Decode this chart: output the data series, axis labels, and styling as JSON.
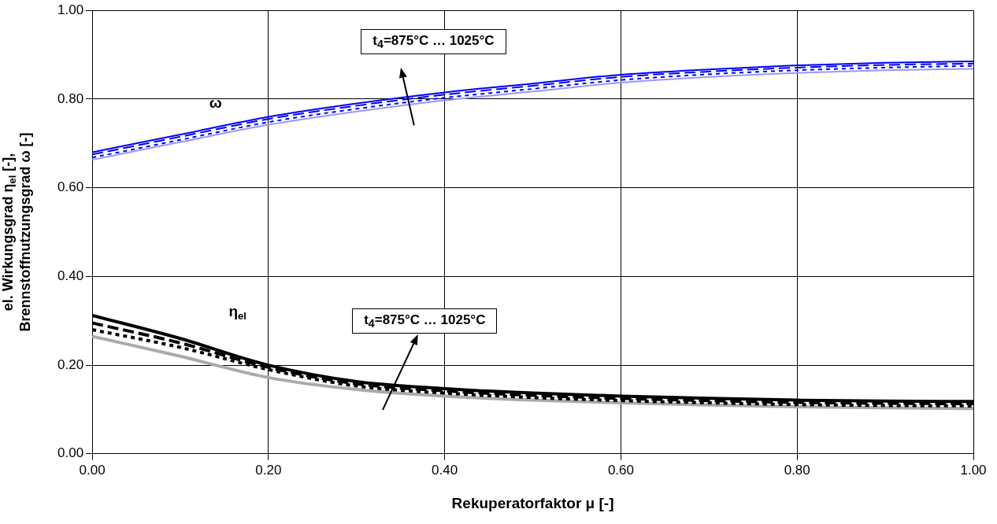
{
  "chart_data": {
    "type": "line",
    "xlabel": "Rekuperatorfaktor μ [-]",
    "ylabel": "el. Wirkungsgrad η$_{el}$ [-],\nBrennstoffnutzungsgrad ω [-]",
    "x": [
      0,
      0.1,
      0.2,
      0.3,
      0.4,
      0.5,
      0.6,
      0.7,
      0.8,
      0.9,
      1.0
    ],
    "series": [
      {
        "color": "#0000ff",
        "line_style": "solid",
        "values": [
          0.68,
          0.72,
          0.76,
          0.79,
          0.815,
          0.835,
          0.855,
          0.867,
          0.876,
          0.882,
          0.885
        ]
      },
      {
        "color": "#0000ff",
        "line_style": "dashed",
        "values": [
          0.675,
          0.715,
          0.755,
          0.785,
          0.81,
          0.83,
          0.85,
          0.862,
          0.871,
          0.877,
          0.88
        ]
      },
      {
        "color": "#0000ff",
        "line_style": "dotted",
        "values": [
          0.668,
          0.708,
          0.748,
          0.778,
          0.803,
          0.823,
          0.843,
          0.856,
          0.865,
          0.871,
          0.875
        ]
      },
      {
        "color": "#9999ff",
        "line_style": "solid",
        "values": [
          0.663,
          0.703,
          0.742,
          0.772,
          0.797,
          0.817,
          0.837,
          0.85,
          0.859,
          0.865,
          0.868
        ]
      },
      {
        "color": "#000000",
        "line_style": "solid",
        "values": [
          0.312,
          0.26,
          0.2,
          0.163,
          0.147,
          0.137,
          0.13,
          0.125,
          0.121,
          0.119,
          0.118
        ]
      },
      {
        "color": "#000000",
        "line_style": "dashed",
        "values": [
          0.295,
          0.25,
          0.195,
          0.158,
          0.142,
          0.132,
          0.125,
          0.12,
          0.116,
          0.114,
          0.113
        ]
      },
      {
        "color": "#000000",
        "line_style": "dotted",
        "values": [
          0.28,
          0.24,
          0.19,
          0.153,
          0.137,
          0.127,
          0.12,
          0.115,
          0.111,
          0.109,
          0.108
        ]
      },
      {
        "color": "#aaaaaa",
        "line_style": "solid",
        "values": [
          0.265,
          0.22,
          0.172,
          0.145,
          0.13,
          0.121,
          0.115,
          0.11,
          0.106,
          0.104,
          0.102
        ]
      }
    ],
    "xlim": [
      0,
      1
    ],
    "xticks": [
      {
        "value": 0,
        "label": "0.00"
      },
      {
        "value": 0.2,
        "label": "0.20"
      },
      {
        "value": 0.4,
        "label": "0.40"
      },
      {
        "value": 0.6,
        "label": "0.60"
      },
      {
        "value": 0.8,
        "label": "0.80"
      },
      {
        "value": 1,
        "label": "1.00"
      }
    ],
    "ylim": [
      0,
      1
    ],
    "yticks": [
      {
        "value": 0,
        "label": "0.00"
      },
      {
        "value": 0.2,
        "label": "0.20"
      },
      {
        "value": 0.4,
        "label": "0.40"
      },
      {
        "value": 0.6,
        "label": "0.60"
      },
      {
        "value": 0.8,
        "label": "0.80"
      },
      {
        "value": 1,
        "label": "1.00"
      }
    ],
    "grid": true,
    "legend": false,
    "marker": "none",
    "annotations": [
      "ω",
      "η$_{el}$",
      "t$_{4}$=875°C … 1025°C",
      "t$_{4}$=875°C … 1025°C"
    ]
  }
}
